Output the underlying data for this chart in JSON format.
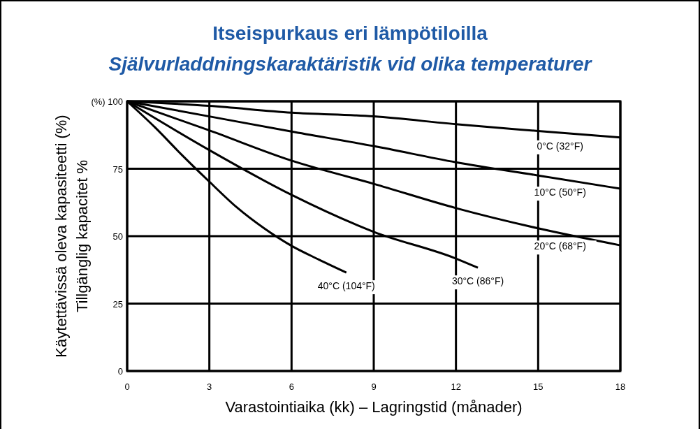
{
  "chart_data": {
    "type": "line",
    "title": "Itseispurkaus eri lämpötiloilla",
    "subtitle": "Självurladdningskaraktäristik vid olika temperaturer",
    "xlabel": "Varastointiaika (kk) –  Lagringstid (månader)",
    "ylabel": "Käytettävissä oleva kapasiteetti (%)\nTillgänglig kapacitet %",
    "xlim": [
      0,
      18
    ],
    "xticks": [
      0,
      3,
      6,
      9,
      12,
      15,
      18
    ],
    "ylim": [
      0,
      100
    ],
    "yticks": [
      0,
      25,
      50,
      75,
      {
        "value": 100,
        "label": "(%) 100"
      }
    ],
    "grid": true,
    "marker": "none",
    "line_style": "solid",
    "series": [
      {
        "name": "0°C  (32°F)",
        "color": "#000000",
        "x": [
          0,
          3,
          6,
          9,
          12,
          15,
          18
        ],
        "values": [
          100,
          98.3,
          95.8,
          94.4,
          91.5,
          89,
          86.6
        ]
      },
      {
        "name": "10°C  (50°F)",
        "color": "#000000",
        "x": [
          0,
          3,
          6,
          9,
          12,
          15,
          18
        ],
        "values": [
          100,
          94.4,
          88.8,
          83.4,
          77.4,
          72.5,
          67.6
        ]
      },
      {
        "name": "20°C  (68°F)",
        "color": "#000000",
        "x": [
          0,
          3,
          6,
          9,
          12,
          15,
          18
        ],
        "values": [
          100,
          89.2,
          78,
          69.4,
          60.4,
          52.9,
          46.6
        ]
      },
      {
        "name": "30°C  (86°F)",
        "color": "#000000",
        "x": [
          0,
          3,
          6,
          9,
          12,
          12.8
        ],
        "values": [
          100,
          81.9,
          65.3,
          51.6,
          41.7,
          38.3
        ]
      },
      {
        "name": "40°C  (104°F)",
        "color": "#000000",
        "x": [
          0,
          1,
          2,
          3,
          4,
          5,
          6,
          7,
          8
        ],
        "values": [
          100,
          90.5,
          80.1,
          70.2,
          60.7,
          52.9,
          46.4,
          41.3,
          36.5
        ]
      }
    ]
  }
}
